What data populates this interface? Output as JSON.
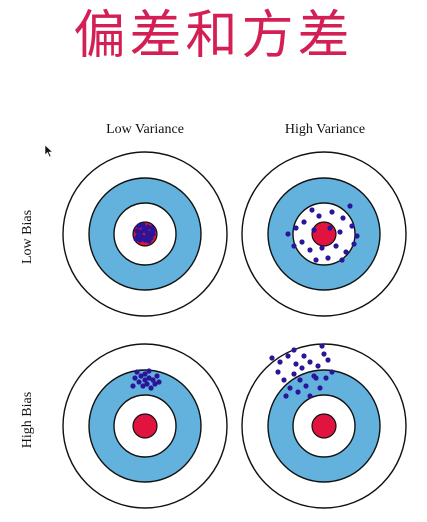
{
  "title": "偏差和方差",
  "colors": {
    "title": "#d41f55",
    "ring_blue": "#63b2dd",
    "bullseye": "#e0143f",
    "dot": "#2a1599",
    "ring_stroke": "#111111"
  },
  "columns": [
    "Low Variance",
    "High Variance"
  ],
  "rows": [
    "Low Bias",
    "High Bias"
  ],
  "cursor_icon": "arrow-cursor-icon"
}
